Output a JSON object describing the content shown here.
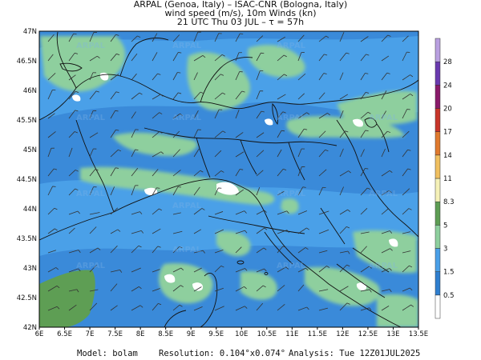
{
  "header": {
    "line1": "ARPAL (Genoa, Italy)  –  ISAC-CNR (Bologna, Italy)",
    "line2": "wind speed (m/s), 10m Winds (kn)",
    "line3": "21 UTC Thu 03 JUL  –  τ = 57h"
  },
  "footer": {
    "model": "Model: bolam",
    "resolution": "Resolution: 0.104°x0.074°",
    "analysis": "Analysis: Tue 12Z01JUL2025"
  },
  "axes": {
    "lon_labels": [
      "6E",
      "6.5E",
      "7E",
      "7.5E",
      "8E",
      "8.5E",
      "9E",
      "9.5E",
      "10E",
      "10.5E",
      "11E",
      "11.5E",
      "12E",
      "12.5E",
      "13E",
      "13.5E"
    ],
    "lat_labels": [
      "42N",
      "42.5N",
      "43N",
      "43.5N",
      "44N",
      "44.5N",
      "45N",
      "45.5N",
      "46N",
      "46.5N",
      "47N"
    ]
  },
  "colorbar": {
    "levels": [
      "0.5",
      "1.5",
      "3",
      "5",
      "8.3",
      "11",
      "14",
      "17",
      "20",
      "24",
      "28"
    ],
    "colors": [
      "#ffffff",
      "#2f7fcf",
      "#4aa0e8",
      "#8ecf9e",
      "#5e9e54",
      "#f5f1b8",
      "#f0c060",
      "#e07a2e",
      "#c8352a",
      "#8a1a6a",
      "#6a3ab0",
      "#b9a0e0"
    ]
  },
  "legend_palette": {
    "white": "#ffffff",
    "blue_dark": "#2f7fcf",
    "blue_light": "#4aa0e8",
    "green_light": "#8ecf9e",
    "green_dark": "#5e9e54"
  },
  "watermark": "ARPAL"
}
